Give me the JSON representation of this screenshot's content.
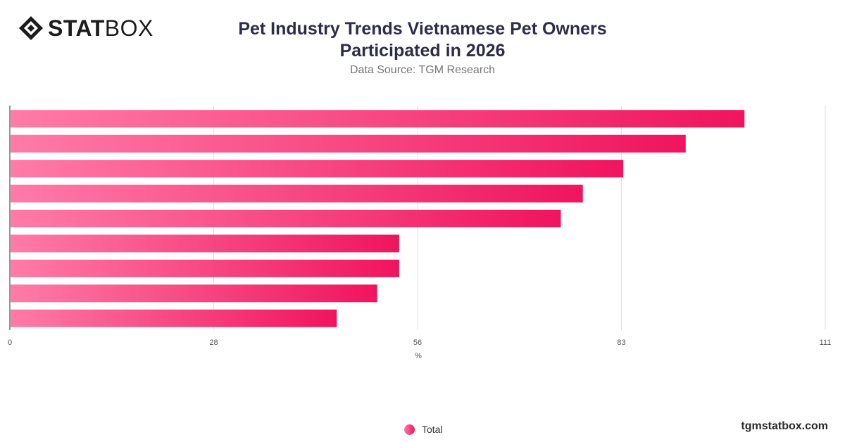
{
  "brand": {
    "logo_bold": "STAT",
    "logo_light": "BOX",
    "footer": "tgmstatbox.com"
  },
  "chart_data": {
    "type": "bar",
    "orientation": "horizontal",
    "title": "Pet Industry Trends Vietnamese Pet Owners Participated in 2026",
    "subtitle": "Data Source: TGM Research",
    "xlabel": "%",
    "ylabel": "",
    "xlim": [
      0,
      111
    ],
    "xticks": [
      "0",
      "28",
      "56",
      "83",
      "111"
    ],
    "xtick_values": [
      0,
      27.75,
      55.5,
      83.25,
      111
    ],
    "grid": true,
    "legend": "bottom-center",
    "categories": [
      "",
      "",
      "",
      "",
      "",
      "",
      "",
      "",
      ""
    ],
    "series": [
      {
        "name": "Total",
        "values": [
          100,
          92,
          83.5,
          78,
          75,
          53,
          53,
          50,
          44.5
        ]
      }
    ],
    "colors": {
      "bar_start": "#ff7ba8",
      "bar_end": "#f0145e",
      "grid": "#e2e2e2",
      "axis": "#333333"
    }
  }
}
